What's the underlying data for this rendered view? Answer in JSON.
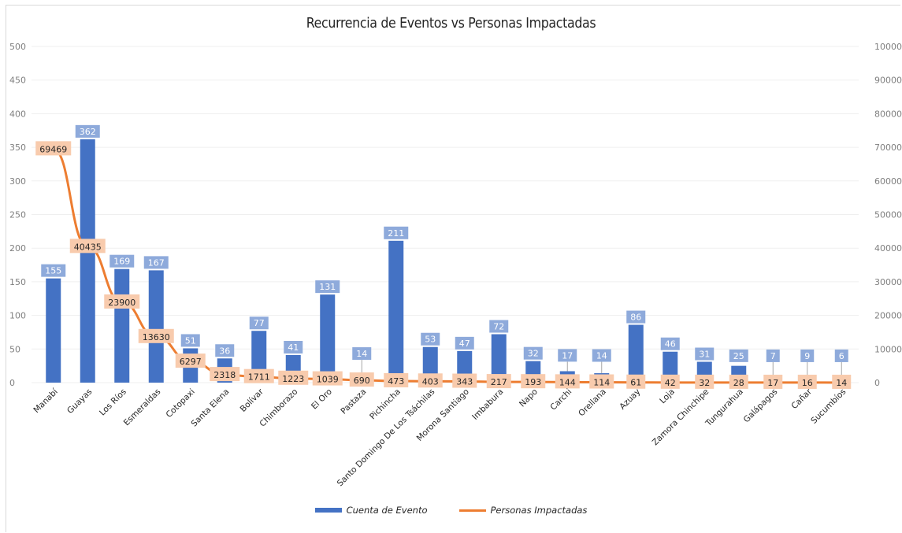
{
  "chart_data": {
    "type": "bar",
    "title": "Recurrencia de Eventos vs Personas Impactadas",
    "categories": [
      "Manabí",
      "Guayas",
      "Los Ríos",
      "Esmeraldas",
      "Cotopaxi",
      "Santa Elena",
      "Bolívar",
      "Chimborazo",
      "El Oro",
      "Pastaza",
      "Pichincha",
      "Santo Domingo De Los Tsáchilas",
      "Morona Santiago",
      "Imbabura",
      "Napo",
      "Carchi",
      "Orellana",
      "Azuay",
      "Loja",
      "Zamora Chinchipe",
      "Tungurahua",
      "Galápagos",
      "Cañar",
      "Sucumbíos"
    ],
    "series": [
      {
        "name": "Cuenta de Evento",
        "type": "bar",
        "axis": "left",
        "color": "#4472c4",
        "values": [
          155,
          362,
          169,
          167,
          51,
          36,
          77,
          41,
          131,
          14,
          211,
          53,
          47,
          72,
          32,
          17,
          14,
          86,
          46,
          31,
          25,
          7,
          9,
          6
        ]
      },
      {
        "name": "Personas Impactadas",
        "type": "line",
        "axis": "right",
        "color": "#ed7d31",
        "values": [
          69469,
          40435,
          23900,
          13630,
          6297,
          2318,
          1711,
          1223,
          1039,
          690,
          473,
          403,
          343,
          217,
          193,
          144,
          114,
          61,
          42,
          32,
          28,
          17,
          16,
          14
        ]
      }
    ],
    "y_left": {
      "min": 0,
      "max": 500,
      "ticks": [
        "0",
        "50",
        "100",
        "150",
        "200",
        "250",
        "300",
        "350",
        "400",
        "450",
        "500"
      ]
    },
    "y_right": {
      "min": 0,
      "max": 100000,
      "ticks": [
        "0",
        "10000",
        "20000",
        "30000",
        "40000",
        "50000",
        "60000",
        "70000",
        "80000",
        "90000",
        "100000"
      ]
    },
    "grid": true,
    "legend_position": "bottom",
    "colors": {
      "bar": "#4472c4",
      "line": "#ed7d31",
      "bar_label_bg": "#8eaadb",
      "line_label_bg": "#f8cbad",
      "grid": "#efefef"
    }
  }
}
